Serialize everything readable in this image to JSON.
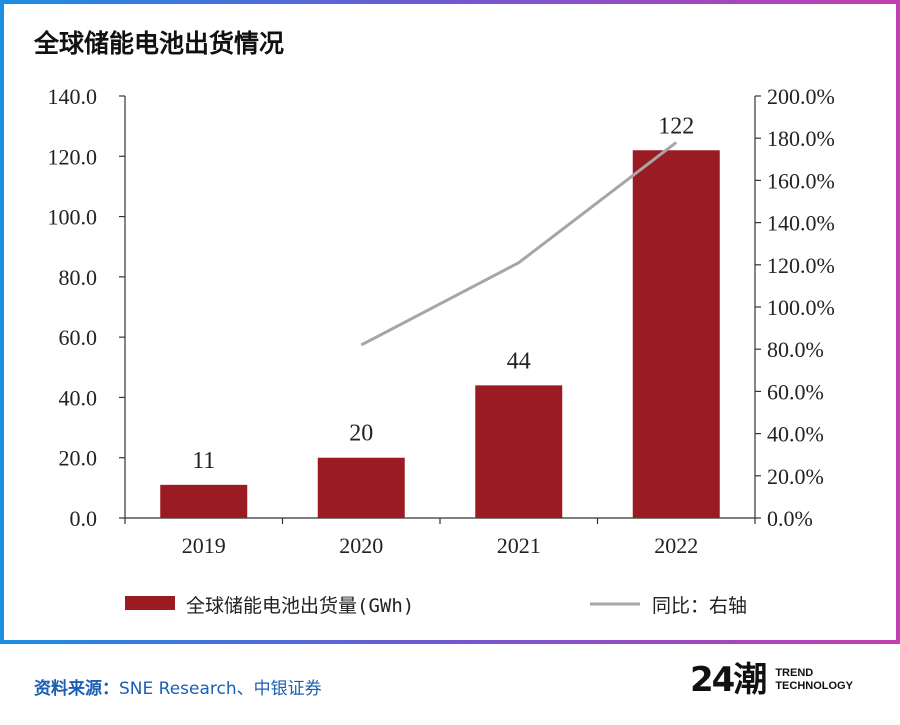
{
  "title": "全球储能电池出货情况",
  "footer": {
    "source_label": "资料来源：",
    "source_text": "SNE Research、中银证券"
  },
  "brand": {
    "mark": "24潮",
    "line1": "TREND",
    "line2": "TECHNOLOGY"
  },
  "colors": {
    "bar": "#9b1b22",
    "line": "#a6a6a6",
    "axis": "#333333",
    "frame_left": "#1b8fe0",
    "frame_right": "#c43fb0"
  },
  "chart_data": {
    "type": "bar",
    "categories": [
      "2019",
      "2020",
      "2021",
      "2022"
    ],
    "series": [
      {
        "name": "全球储能电池出货量(GWh)",
        "type": "bar",
        "axis": "left",
        "values": [
          11,
          20,
          44,
          122
        ],
        "labels": [
          "11",
          "20",
          "44",
          "122"
        ]
      },
      {
        "name": "同比：右轴",
        "type": "line",
        "axis": "right",
        "values": [
          null,
          82,
          121,
          178
        ]
      }
    ],
    "y_left": {
      "ylim": [
        0,
        140
      ],
      "ticks": [
        "0.0",
        "20.0",
        "40.0",
        "60.0",
        "80.0",
        "100.0",
        "120.0",
        "140.0"
      ]
    },
    "y_right": {
      "ylim": [
        0,
        200
      ],
      "ticks": [
        "0.0%",
        "20.0%",
        "40.0%",
        "60.0%",
        "80.0%",
        "100.0%",
        "120.0%",
        "140.0%",
        "160.0%",
        "180.0%",
        "200.0%"
      ]
    },
    "legend": [
      {
        "kind": "bar",
        "label": "全球储能电池出货量(GWh)"
      },
      {
        "kind": "line",
        "label": "同比：右轴"
      }
    ],
    "legend_position": "bottom"
  }
}
